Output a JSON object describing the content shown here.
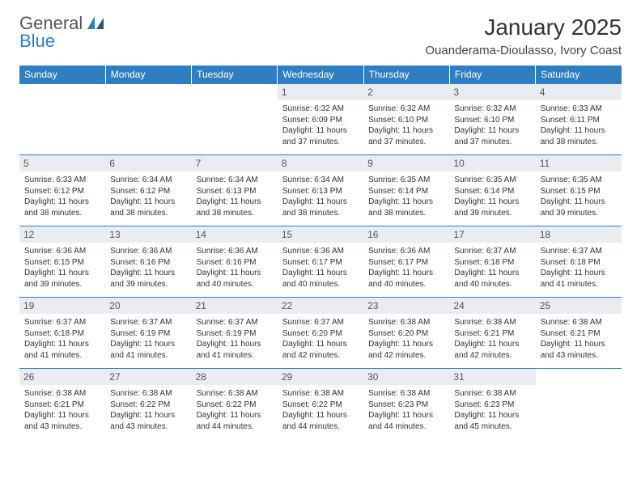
{
  "logo": {
    "word1": "General",
    "word2": "Blue"
  },
  "title": "January 2025",
  "location": "Ouanderama-Dioulasso, Ivory Coast",
  "day_headers": [
    "Sunday",
    "Monday",
    "Tuesday",
    "Wednesday",
    "Thursday",
    "Friday",
    "Saturday"
  ],
  "colors": {
    "brand_blue": "#2f7ec2",
    "daynum_bg": "#e9edf1",
    "text": "#333333",
    "background": "#ffffff"
  },
  "weeks": [
    [
      null,
      null,
      null,
      {
        "d": "1",
        "sr": "6:32 AM",
        "ss": "6:09 PM",
        "dl": "11 hours and 37 minutes."
      },
      {
        "d": "2",
        "sr": "6:32 AM",
        "ss": "6:10 PM",
        "dl": "11 hours and 37 minutes."
      },
      {
        "d": "3",
        "sr": "6:32 AM",
        "ss": "6:10 PM",
        "dl": "11 hours and 37 minutes."
      },
      {
        "d": "4",
        "sr": "6:33 AM",
        "ss": "6:11 PM",
        "dl": "11 hours and 38 minutes."
      }
    ],
    [
      {
        "d": "5",
        "sr": "6:33 AM",
        "ss": "6:12 PM",
        "dl": "11 hours and 38 minutes."
      },
      {
        "d": "6",
        "sr": "6:34 AM",
        "ss": "6:12 PM",
        "dl": "11 hours and 38 minutes."
      },
      {
        "d": "7",
        "sr": "6:34 AM",
        "ss": "6:13 PM",
        "dl": "11 hours and 38 minutes."
      },
      {
        "d": "8",
        "sr": "6:34 AM",
        "ss": "6:13 PM",
        "dl": "11 hours and 38 minutes."
      },
      {
        "d": "9",
        "sr": "6:35 AM",
        "ss": "6:14 PM",
        "dl": "11 hours and 38 minutes."
      },
      {
        "d": "10",
        "sr": "6:35 AM",
        "ss": "6:14 PM",
        "dl": "11 hours and 39 minutes."
      },
      {
        "d": "11",
        "sr": "6:35 AM",
        "ss": "6:15 PM",
        "dl": "11 hours and 39 minutes."
      }
    ],
    [
      {
        "d": "12",
        "sr": "6:36 AM",
        "ss": "6:15 PM",
        "dl": "11 hours and 39 minutes."
      },
      {
        "d": "13",
        "sr": "6:36 AM",
        "ss": "6:16 PM",
        "dl": "11 hours and 39 minutes."
      },
      {
        "d": "14",
        "sr": "6:36 AM",
        "ss": "6:16 PM",
        "dl": "11 hours and 40 minutes."
      },
      {
        "d": "15",
        "sr": "6:36 AM",
        "ss": "6:17 PM",
        "dl": "11 hours and 40 minutes."
      },
      {
        "d": "16",
        "sr": "6:36 AM",
        "ss": "6:17 PM",
        "dl": "11 hours and 40 minutes."
      },
      {
        "d": "17",
        "sr": "6:37 AM",
        "ss": "6:18 PM",
        "dl": "11 hours and 40 minutes."
      },
      {
        "d": "18",
        "sr": "6:37 AM",
        "ss": "6:18 PM",
        "dl": "11 hours and 41 minutes."
      }
    ],
    [
      {
        "d": "19",
        "sr": "6:37 AM",
        "ss": "6:18 PM",
        "dl": "11 hours and 41 minutes."
      },
      {
        "d": "20",
        "sr": "6:37 AM",
        "ss": "6:19 PM",
        "dl": "11 hours and 41 minutes."
      },
      {
        "d": "21",
        "sr": "6:37 AM",
        "ss": "6:19 PM",
        "dl": "11 hours and 41 minutes."
      },
      {
        "d": "22",
        "sr": "6:37 AM",
        "ss": "6:20 PM",
        "dl": "11 hours and 42 minutes."
      },
      {
        "d": "23",
        "sr": "6:38 AM",
        "ss": "6:20 PM",
        "dl": "11 hours and 42 minutes."
      },
      {
        "d": "24",
        "sr": "6:38 AM",
        "ss": "6:21 PM",
        "dl": "11 hours and 42 minutes."
      },
      {
        "d": "25",
        "sr": "6:38 AM",
        "ss": "6:21 PM",
        "dl": "11 hours and 43 minutes."
      }
    ],
    [
      {
        "d": "26",
        "sr": "6:38 AM",
        "ss": "6:21 PM",
        "dl": "11 hours and 43 minutes."
      },
      {
        "d": "27",
        "sr": "6:38 AM",
        "ss": "6:22 PM",
        "dl": "11 hours and 43 minutes."
      },
      {
        "d": "28",
        "sr": "6:38 AM",
        "ss": "6:22 PM",
        "dl": "11 hours and 44 minutes."
      },
      {
        "d": "29",
        "sr": "6:38 AM",
        "ss": "6:22 PM",
        "dl": "11 hours and 44 minutes."
      },
      {
        "d": "30",
        "sr": "6:38 AM",
        "ss": "6:23 PM",
        "dl": "11 hours and 44 minutes."
      },
      {
        "d": "31",
        "sr": "6:38 AM",
        "ss": "6:23 PM",
        "dl": "11 hours and 45 minutes."
      },
      null
    ]
  ],
  "labels": {
    "sunrise": "Sunrise:",
    "sunset": "Sunset:",
    "daylight": "Daylight:"
  }
}
